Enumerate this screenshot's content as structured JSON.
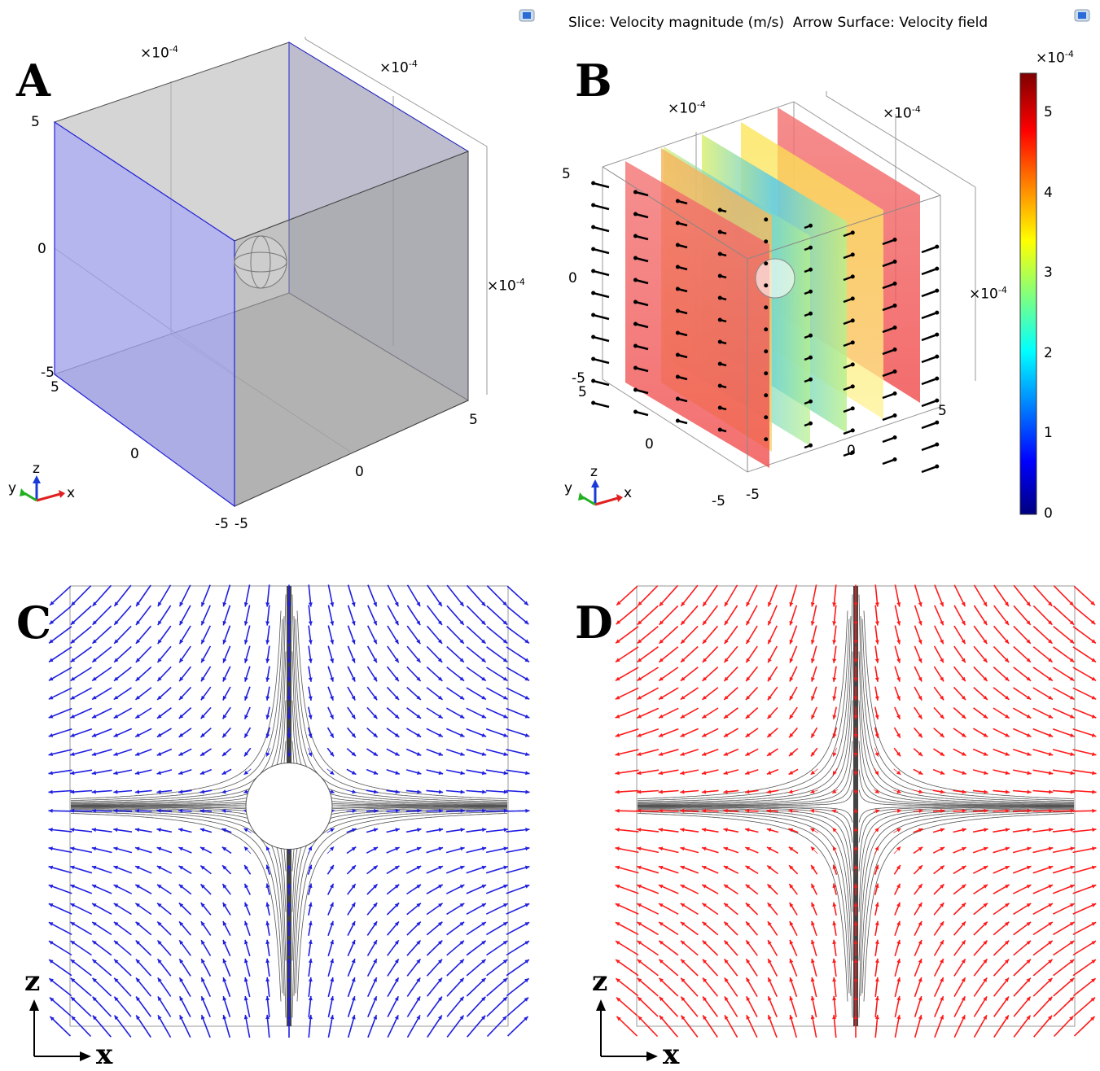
{
  "header": {
    "title": "Slice: Velocity magnitude (m/s)  Arrow Surface: Velocity field"
  },
  "panels": {
    "a": {
      "letter": "A",
      "scale_label_1": "×10",
      "scale_label_2": "×10",
      "scale_label_3": "×10",
      "scale_exp": "-4",
      "tick_5": "5",
      "tick_0": "0",
      "tick_m5": "-5"
    },
    "b": {
      "letter": "B",
      "scale_label_1": "×10",
      "scale_label_2": "×10",
      "scale_label_3": "×10",
      "scale_exp": "-4",
      "tick_5": "5",
      "tick_0": "0",
      "tick_m5": "-5"
    },
    "c": {
      "letter": "C",
      "arrow_color": "#1f1fe0"
    },
    "d": {
      "letter": "D",
      "arrow_color": "#ff1a1a"
    }
  },
  "colorbar": {
    "exp_label": "×10",
    "exp": "-4",
    "ticks": [
      "5",
      "4",
      "3",
      "2",
      "1",
      "0"
    ],
    "min": 0,
    "max": 5.5,
    "colors": [
      "#00007f",
      "#0000ff",
      "#00ffff",
      "#ffff00",
      "#ff7f00",
      "#ff0000",
      "#7f0000"
    ]
  },
  "triad": {
    "x": "x",
    "y": "y",
    "z": "z"
  },
  "flow_axes": {
    "z": "z",
    "x": "x"
  }
}
